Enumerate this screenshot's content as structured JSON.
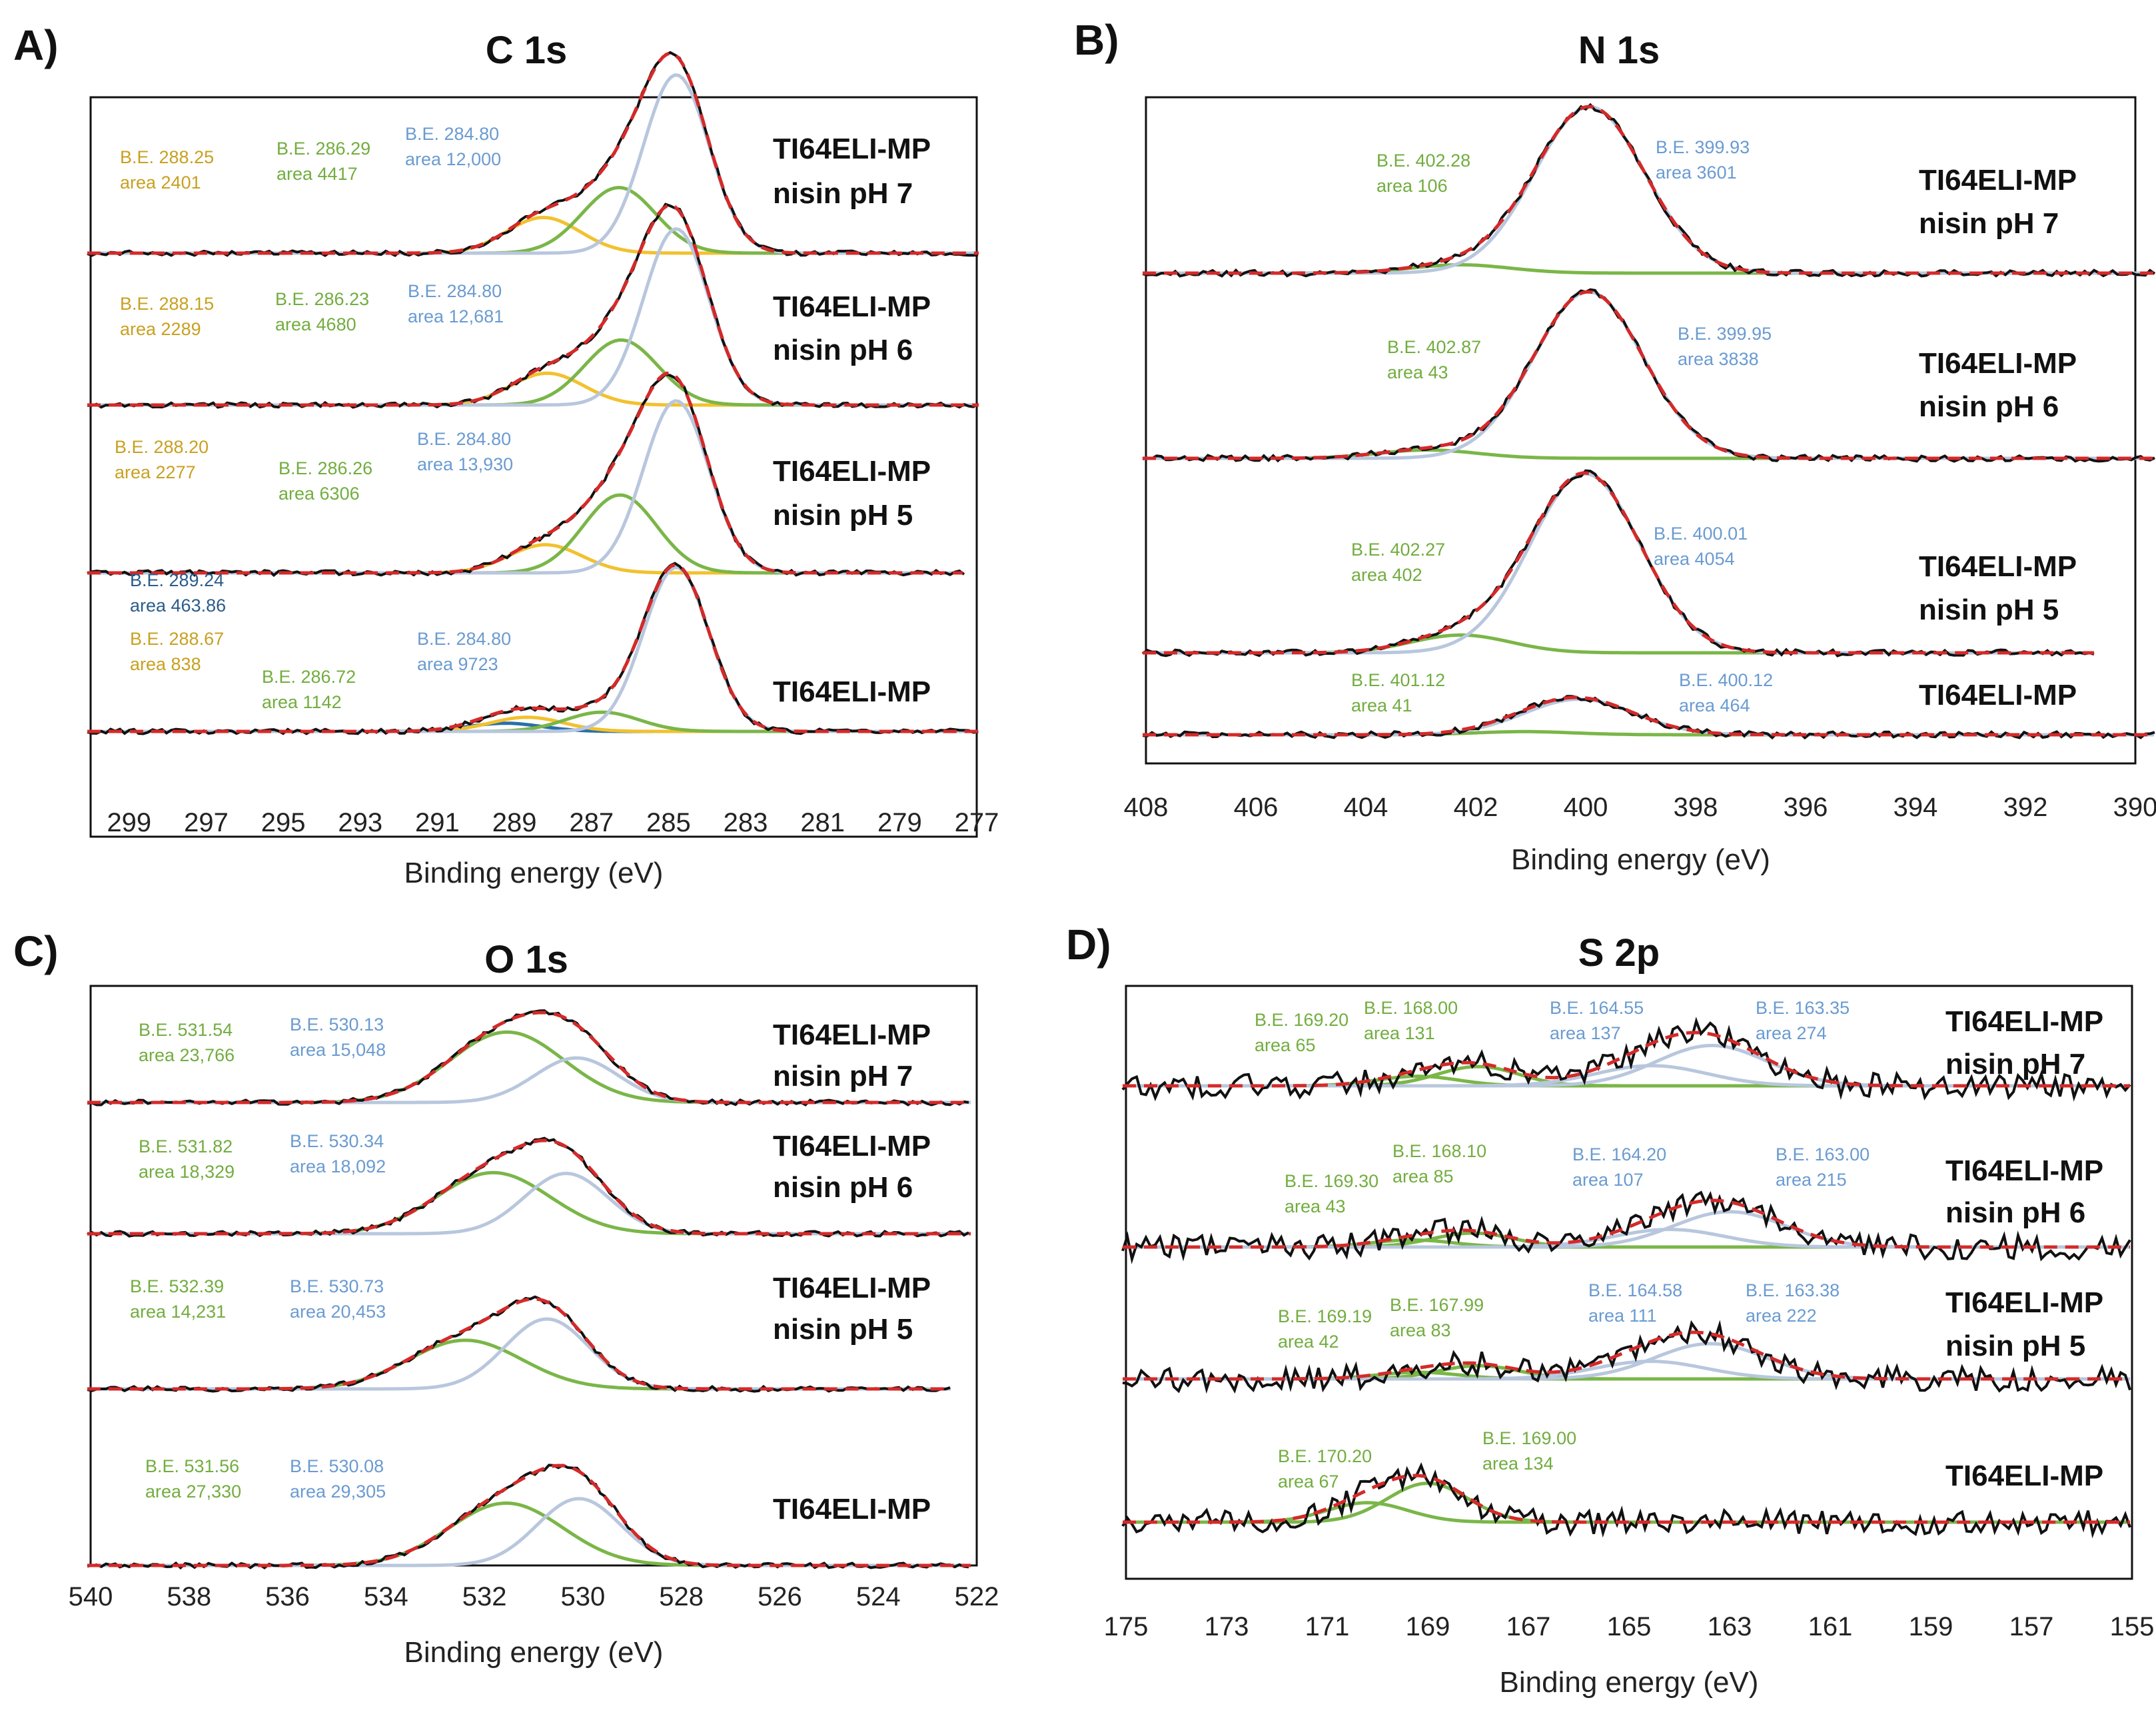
{
  "colors": {
    "blue": "#8aa8d0",
    "green": "#7ab648",
    "yellow": "#f2c12e",
    "darkblue": "#2a6faa",
    "fit": "#d42a2a",
    "raw": "#111111",
    "component_lightblue": "#b8c7dd",
    "ann_blue": "#6a9bd1",
    "ann_green": "#72ad3f",
    "ann_yellow": "#c9a020",
    "ann_darkblue": "#2b5c8a"
  },
  "chart_data": [
    {
      "id": "A",
      "type": "line",
      "letter": "A)",
      "title": "C 1s",
      "xlabel": "Binding energy (eV)",
      "xlim": [
        300,
        277
      ],
      "xticks": [
        299,
        297,
        295,
        293,
        291,
        289,
        287,
        285,
        283,
        281,
        279,
        277
      ],
      "series": [
        {
          "sample": [
            "TI64ELI-MP",
            "nisin pH 7"
          ],
          "fits": [
            {
              "be": 288.25,
              "area": 2401,
              "color": "yellow",
              "label": [
                "B.E. 288.25",
                "area 2401"
              ]
            },
            {
              "be": 286.29,
              "area": 4417,
              "color": "green",
              "label": [
                "B.E. 286.29",
                "area 4417"
              ]
            },
            {
              "be": 284.8,
              "area": 12000,
              "color": "blue",
              "label": [
                "B.E. 284.80",
                "area 12,000"
              ]
            }
          ]
        },
        {
          "sample": [
            "TI64ELI-MP",
            "nisin pH 6"
          ],
          "fits": [
            {
              "be": 288.15,
              "area": 2289,
              "color": "yellow",
              "label": [
                "B.E. 288.15",
                "area 2289"
              ]
            },
            {
              "be": 286.23,
              "area": 4680,
              "color": "green",
              "label": [
                "B.E. 286.23",
                "area 4680"
              ]
            },
            {
              "be": 284.8,
              "area": 12681,
              "color": "blue",
              "label": [
                "B.E. 284.80",
                "area 12,681"
              ]
            }
          ]
        },
        {
          "sample": [
            "TI64ELI-MP",
            "nisin pH 5"
          ],
          "fits": [
            {
              "be": 288.2,
              "area": 2277,
              "color": "yellow",
              "label": [
                "B.E. 288.20",
                "area 2277"
              ]
            },
            {
              "be": 286.26,
              "area": 6306,
              "color": "green",
              "label": [
                "B.E. 286.26",
                "area 6306"
              ]
            },
            {
              "be": 284.8,
              "area": 13930,
              "color": "blue",
              "label": [
                "B.E. 284.80",
                "area 13,930"
              ]
            }
          ]
        },
        {
          "sample": [
            "TI64ELI-MP"
          ],
          "fits": [
            {
              "be": 289.24,
              "area": 463.86,
              "color": "darkblue",
              "label": [
                "B.E. 289.24",
                "area 463.86"
              ]
            },
            {
              "be": 288.67,
              "area": 838,
              "color": "yellow",
              "label": [
                "B.E. 288.67",
                "area 838"
              ]
            },
            {
              "be": 286.72,
              "area": 1142,
              "color": "green",
              "label": [
                "B.E. 286.72",
                "area 1142"
              ]
            },
            {
              "be": 284.8,
              "area": 9723,
              "color": "blue",
              "label": [
                "B.E. 284.80",
                "area 9723"
              ]
            }
          ]
        }
      ]
    },
    {
      "id": "B",
      "type": "line",
      "letter": "B)",
      "title": "N 1s",
      "xlabel": "Binding energy (eV)",
      "xlim": [
        408,
        390
      ],
      "xticks": [
        408,
        406,
        404,
        402,
        400,
        398,
        396,
        394,
        392,
        390
      ],
      "series": [
        {
          "sample": [
            "TI64ELI-MP",
            "nisin pH 7"
          ],
          "fits": [
            {
              "be": 402.28,
              "area": 106,
              "color": "green",
              "label": [
                "B.E. 402.28",
                "area 106"
              ]
            },
            {
              "be": 399.93,
              "area": 3601,
              "color": "blue",
              "label": [
                "B.E. 399.93",
                "area 3601"
              ]
            }
          ]
        },
        {
          "sample": [
            "TI64ELI-MP",
            "nisin pH 6"
          ],
          "fits": [
            {
              "be": 402.87,
              "area": 43,
              "color": "green",
              "label": [
                "B.E. 402.87",
                "area 43"
              ]
            },
            {
              "be": 399.95,
              "area": 3838,
              "color": "blue",
              "label": [
                "B.E. 399.95",
                "area 3838"
              ]
            }
          ]
        },
        {
          "sample": [
            "TI64ELI-MP",
            "nisin pH 5"
          ],
          "fits": [
            {
              "be": 402.27,
              "area": 402,
              "color": "green",
              "label": [
                "B.E. 402.27",
                "area 402"
              ]
            },
            {
              "be": 400.01,
              "area": 4054,
              "color": "blue",
              "label": [
                "B.E. 400.01",
                "area 4054"
              ]
            }
          ]
        },
        {
          "sample": [
            "TI64ELI-MP"
          ],
          "fits": [
            {
              "be": 401.12,
              "area": 41,
              "color": "green",
              "label": [
                "B.E. 401.12",
                "area 41"
              ]
            },
            {
              "be": 400.12,
              "area": 464,
              "color": "blue",
              "label": [
                "B.E. 400.12",
                "area 464"
              ]
            }
          ]
        }
      ]
    },
    {
      "id": "C",
      "type": "line",
      "letter": "C)",
      "title": "O 1s",
      "xlabel": "Binding energy (eV)",
      "xlim": [
        540,
        522
      ],
      "xticks": [
        540,
        538,
        536,
        534,
        532,
        530,
        528,
        526,
        524,
        522
      ],
      "series": [
        {
          "sample": [
            "TI64ELI-MP",
            "nisin pH 7"
          ],
          "fits": [
            {
              "be": 531.54,
              "area": 23766,
              "color": "green",
              "label": [
                "B.E. 531.54",
                "area 23,766"
              ]
            },
            {
              "be": 530.13,
              "area": 15048,
              "color": "blue",
              "label": [
                "B.E. 530.13",
                "area 15,048"
              ]
            }
          ]
        },
        {
          "sample": [
            "TI64ELI-MP",
            "nisin pH 6"
          ],
          "fits": [
            {
              "be": 531.82,
              "area": 18329,
              "color": "green",
              "label": [
                "B.E. 531.82",
                "area 18,329"
              ]
            },
            {
              "be": 530.34,
              "area": 18092,
              "color": "blue",
              "label": [
                "B.E. 530.34",
                "area 18,092"
              ]
            }
          ]
        },
        {
          "sample": [
            "TI64ELI-MP",
            "nisin pH 5"
          ],
          "fits": [
            {
              "be": 532.39,
              "area": 14231,
              "color": "green",
              "label": [
                "B.E. 532.39",
                "area 14,231"
              ]
            },
            {
              "be": 530.73,
              "area": 20453,
              "color": "blue",
              "label": [
                "B.E. 530.73",
                "area 20,453"
              ]
            }
          ]
        },
        {
          "sample": [
            "TI64ELI-MP"
          ],
          "fits": [
            {
              "be": 531.56,
              "area": 27330,
              "color": "green",
              "label": [
                "B.E. 531.56",
                "area 27,330"
              ]
            },
            {
              "be": 530.08,
              "area": 29305,
              "color": "blue",
              "label": [
                "B.E. 530.08",
                "area 29,305"
              ]
            }
          ]
        }
      ]
    },
    {
      "id": "D",
      "type": "line",
      "letter": "D)",
      "title": "S 2p",
      "xlabel": "Binding energy (eV)",
      "xlim": [
        175,
        155
      ],
      "xticks": [
        175,
        173,
        171,
        169,
        167,
        165,
        163,
        161,
        159,
        157,
        155
      ],
      "series": [
        {
          "sample": [
            "TI64ELI-MP",
            "nisin pH 7"
          ],
          "fits": [
            {
              "be": 169.2,
              "area": 65,
              "color": "green",
              "label": [
                "B.E. 169.20",
                "area 65"
              ]
            },
            {
              "be": 168.0,
              "area": 131,
              "color": "green",
              "label": [
                "B.E. 168.00",
                "area  131"
              ]
            },
            {
              "be": 164.55,
              "area": 137,
              "color": "blue",
              "label": [
                "B.E. 164.55",
                "area 137"
              ]
            },
            {
              "be": 163.35,
              "area": 274,
              "color": "blue",
              "label": [
                "B.E. 163.35",
                "area 274"
              ]
            }
          ]
        },
        {
          "sample": [
            "TI64ELI-MP",
            "nisin pH 6"
          ],
          "fits": [
            {
              "be": 169.3,
              "area": 43,
              "color": "green",
              "label": [
                "B.E. 169.30",
                "area 43"
              ]
            },
            {
              "be": 168.1,
              "area": 85,
              "color": "green",
              "label": [
                "B.E. 168.10",
                "area 85"
              ]
            },
            {
              "be": 164.2,
              "area": 107,
              "color": "blue",
              "label": [
                "B.E. 164.20",
                "area  107"
              ]
            },
            {
              "be": 163.0,
              "area": 215,
              "color": "blue",
              "label": [
                "B.E. 163.00",
                "area 215"
              ]
            }
          ]
        },
        {
          "sample": [
            "TI64ELI-MP",
            "nisin pH 5"
          ],
          "fits": [
            {
              "be": 169.19,
              "area": 42,
              "color": "green",
              "label": [
                "B.E. 169.19",
                "area 42"
              ]
            },
            {
              "be": 167.99,
              "area": 83,
              "color": "green",
              "label": [
                "B.E. 167.99",
                "area 83"
              ]
            },
            {
              "be": 164.58,
              "area": 111,
              "color": "blue",
              "label": [
                "B.E. 164.58",
                "area 111"
              ]
            },
            {
              "be": 163.38,
              "area": 222,
              "color": "blue",
              "label": [
                "B.E. 163.38",
                "area 222"
              ]
            }
          ]
        },
        {
          "sample": [
            "TI64ELI-MP"
          ],
          "fits": [
            {
              "be": 170.2,
              "area": 67,
              "color": "green",
              "label": [
                "B.E. 170.20",
                "area 67"
              ]
            },
            {
              "be": 169.0,
              "area": 134,
              "color": "green",
              "label": [
                "B.E. 169.00",
                "area 134"
              ]
            }
          ]
        }
      ]
    }
  ]
}
